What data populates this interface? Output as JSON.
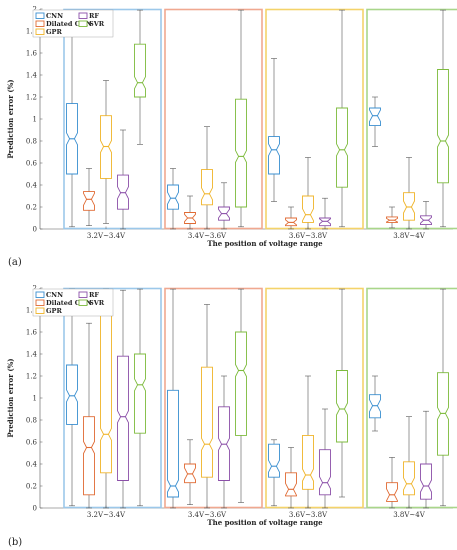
{
  "panel_labels": [
    "(a)",
    "(b)"
  ],
  "colors": {
    "CNN": "#3a8fd0",
    "Dilated CNN": "#e06a33",
    "GPR": "#f0b429",
    "RF": "#8b4fa8",
    "SVR": "#7dbb3c",
    "frame_blue": "#9cc8ea",
    "frame_red": "#f0a890",
    "frame_yellow": "#f4d36a",
    "frame_green": "#a9d68a"
  },
  "chart_data": [
    {
      "type": "box",
      "panel": "(a)",
      "xlabel": "The position of voltage range",
      "ylabel": "Prediction error (%)",
      "ylim": [
        0,
        2
      ],
      "yticks": [
        "0",
        "0.2",
        "0.4",
        "0.6",
        "0.8",
        "1",
        "1.2",
        "1.4",
        "1.6",
        "1.8",
        "2"
      ],
      "categories": [
        "3.2V~3.4V",
        "3.4V~3.6V",
        "3.6V~3.8V",
        "3.8V~4V"
      ],
      "legend": [
        "CNN",
        "RF",
        "Dilated CNN",
        "SVR",
        "GPR"
      ],
      "series": [
        {
          "name": "CNN",
          "boxes": [
            {
              "min": 0.02,
              "q1": 0.5,
              "median": 0.82,
              "q3": 1.14,
              "max": 1.92
            },
            {
              "min": 0.0,
              "q1": 0.18,
              "median": 0.28,
              "q3": 0.4,
              "max": 0.55
            },
            {
              "min": 0.25,
              "q1": 0.5,
              "median": 0.72,
              "q3": 0.84,
              "max": 1.55
            },
            {
              "min": 0.75,
              "q1": 0.94,
              "median": 1.03,
              "q3": 1.1,
              "max": 1.2
            }
          ]
        },
        {
          "name": "Dilated CNN",
          "boxes": [
            {
              "min": 0.03,
              "q1": 0.17,
              "median": 0.27,
              "q3": 0.34,
              "max": 0.55
            },
            {
              "min": 0.0,
              "q1": 0.05,
              "median": 0.1,
              "q3": 0.15,
              "max": 0.3
            },
            {
              "min": 0.0,
              "q1": 0.03,
              "median": 0.06,
              "q3": 0.1,
              "max": 0.2
            },
            {
              "min": 0.01,
              "q1": 0.06,
              "median": 0.08,
              "q3": 0.11,
              "max": 0.2
            }
          ]
        },
        {
          "name": "GPR",
          "boxes": [
            {
              "min": 0.05,
              "q1": 0.46,
              "median": 0.75,
              "q3": 1.03,
              "max": 1.35
            },
            {
              "min": 0.0,
              "q1": 0.22,
              "median": 0.32,
              "q3": 0.54,
              "max": 0.93
            },
            {
              "min": 0.0,
              "q1": 0.06,
              "median": 0.13,
              "q3": 0.3,
              "max": 0.65
            },
            {
              "min": 0.0,
              "q1": 0.08,
              "median": 0.2,
              "q3": 0.33,
              "max": 0.65
            }
          ]
        },
        {
          "name": "RF",
          "boxes": [
            {
              "min": 0.0,
              "q1": 0.18,
              "median": 0.33,
              "q3": 0.49,
              "max": 0.9
            },
            {
              "min": 0.0,
              "q1": 0.08,
              "median": 0.14,
              "q3": 0.2,
              "max": 0.42
            },
            {
              "min": 0.0,
              "q1": 0.03,
              "median": 0.07,
              "q3": 0.1,
              "max": 0.28
            },
            {
              "min": 0.0,
              "q1": 0.04,
              "median": 0.08,
              "q3": 0.12,
              "max": 0.25
            }
          ]
        },
        {
          "name": "SVR",
          "boxes": [
            {
              "min": 0.77,
              "q1": 1.2,
              "median": 1.33,
              "q3": 1.68,
              "max": 1.99
            },
            {
              "min": 0.02,
              "q1": 0.2,
              "median": 0.66,
              "q3": 1.18,
              "max": 1.99
            },
            {
              "min": 0.02,
              "q1": 0.38,
              "median": 0.72,
              "q3": 1.1,
              "max": 1.99
            },
            {
              "min": 0.02,
              "q1": 0.42,
              "median": 0.8,
              "q3": 1.45,
              "max": 1.99
            }
          ]
        }
      ]
    },
    {
      "type": "box",
      "panel": "(b)",
      "xlabel": "The position of voltage range",
      "ylabel": "Prediction error (%)",
      "ylim": [
        0,
        2
      ],
      "yticks": [
        "0",
        "0.2",
        "0.4",
        "0.6",
        "0.8",
        "1",
        "1.2",
        "1.4",
        "1.6",
        "1.8",
        "2"
      ],
      "categories": [
        "3.2V~3.4V",
        "3.4V~3.6V",
        "3.6V~3.8V",
        "3.8V~4V"
      ],
      "legend": [
        "CNN",
        "RF",
        "Dilated CNN",
        "SVR",
        "GPR"
      ],
      "series": [
        {
          "name": "CNN",
          "boxes": [
            {
              "min": 0.02,
              "q1": 0.76,
              "median": 1.02,
              "q3": 1.3,
              "max": 1.99
            },
            {
              "min": 0.0,
              "q1": 0.1,
              "median": 0.2,
              "q3": 1.07,
              "max": 1.99
            },
            {
              "min": 0.02,
              "q1": 0.28,
              "median": 0.38,
              "q3": 0.58,
              "max": 0.62
            },
            {
              "min": 0.7,
              "q1": 0.82,
              "median": 0.93,
              "q3": 1.03,
              "max": 1.2
            }
          ]
        },
        {
          "name": "Dilated CNN",
          "boxes": [
            {
              "min": 0.0,
              "q1": 0.12,
              "median": 0.55,
              "q3": 0.83,
              "max": 1.68
            },
            {
              "min": 0.03,
              "q1": 0.23,
              "median": 0.31,
              "q3": 0.4,
              "max": 0.62
            },
            {
              "min": 0.0,
              "q1": 0.11,
              "median": 0.17,
              "q3": 0.32,
              "max": 0.55
            },
            {
              "min": 0.0,
              "q1": 0.06,
              "median": 0.12,
              "q3": 0.23,
              "max": 0.46
            }
          ]
        },
        {
          "name": "GPR",
          "boxes": [
            {
              "min": 0.0,
              "q1": 0.32,
              "median": 0.67,
              "q3": 1.76,
              "max": 1.99
            },
            {
              "min": 0.0,
              "q1": 0.28,
              "median": 0.58,
              "q3": 1.28,
              "max": 1.85
            },
            {
              "min": 0.0,
              "q1": 0.17,
              "median": 0.3,
              "q3": 0.66,
              "max": 1.2
            },
            {
              "min": 0.0,
              "q1": 0.12,
              "median": 0.22,
              "q3": 0.42,
              "max": 0.83
            }
          ]
        },
        {
          "name": "RF",
          "boxes": [
            {
              "min": 0.0,
              "q1": 0.25,
              "median": 0.83,
              "q3": 1.38,
              "max": 1.98
            },
            {
              "min": 0.0,
              "q1": 0.25,
              "median": 0.58,
              "q3": 0.92,
              "max": 1.2
            },
            {
              "min": 0.0,
              "q1": 0.12,
              "median": 0.23,
              "q3": 0.53,
              "max": 0.9
            },
            {
              "min": 0.0,
              "q1": 0.08,
              "median": 0.2,
              "q3": 0.4,
              "max": 0.88
            }
          ]
        },
        {
          "name": "SVR",
          "boxes": [
            {
              "min": 0.02,
              "q1": 0.68,
              "median": 1.12,
              "q3": 1.4,
              "max": 1.99
            },
            {
              "min": 0.05,
              "q1": 0.66,
              "median": 1.25,
              "q3": 1.6,
              "max": 1.99
            },
            {
              "min": 0.1,
              "q1": 0.6,
              "median": 0.9,
              "q3": 1.25,
              "max": 1.99
            },
            {
              "min": 0.02,
              "q1": 0.48,
              "median": 0.86,
              "q3": 1.23,
              "max": 1.99
            }
          ]
        }
      ]
    }
  ]
}
